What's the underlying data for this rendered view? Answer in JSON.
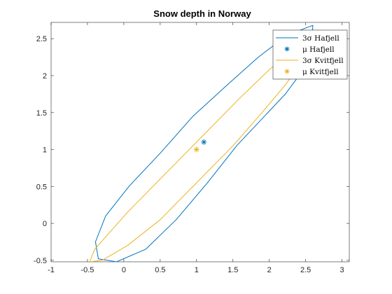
{
  "chart_data": {
    "type": "line",
    "title": "Snow depth in Norway",
    "xlabel": "",
    "ylabel": "",
    "xlim": [
      -1,
      3.1
    ],
    "ylim": [
      -0.52,
      2.72
    ],
    "xticks": [
      -1,
      -0.5,
      0,
      0.5,
      1,
      1.5,
      2,
      2.5,
      3
    ],
    "yticks": [
      -0.5,
      0,
      0.5,
      1,
      1.5,
      2,
      2.5
    ],
    "xtick_labels": [
      "-1",
      "-0.5",
      "0",
      "0.5",
      "1",
      "1.5",
      "2",
      "2.5",
      "3"
    ],
    "ytick_labels": [
      "-0.5",
      "0",
      "0.5",
      "1",
      "1.5",
      "2",
      "2.5"
    ],
    "grid": false,
    "legend_position": "top-right",
    "series": [
      {
        "name": "3σ Hafjell",
        "kind": "ellipse",
        "color": "#0072BD",
        "x": [
          -0.35,
          -0.39,
          -0.25,
          0.07,
          0.5,
          0.95,
          1.45,
          1.85,
          2.25,
          2.6,
          2.56,
          2.22,
          1.55,
          1.15,
          0.72,
          0.3,
          -0.1,
          -0.35
        ],
        "y": [
          -0.48,
          -0.25,
          0.1,
          0.5,
          0.95,
          1.45,
          1.9,
          2.25,
          2.55,
          2.68,
          2.2,
          1.75,
          1.05,
          0.55,
          0.05,
          -0.35,
          -0.52,
          -0.48
        ]
      },
      {
        "name": "μ Hafjell",
        "kind": "marker",
        "marker": "asterisk",
        "color": "#0072BD",
        "x": [
          1.1
        ],
        "y": [
          1.1
        ]
      },
      {
        "name": "3σ Kvitfjell",
        "kind": "ellipse",
        "color": "#EDB120",
        "x": [
          -0.47,
          -0.4,
          0.05,
          0.6,
          1.1,
          1.6,
          2.0,
          2.3,
          2.5,
          2.47,
          2.2,
          1.9,
          1.5,
          1.0,
          0.5,
          0.05,
          -0.3,
          -0.47
        ],
        "y": [
          -0.52,
          -0.35,
          0.15,
          0.7,
          1.2,
          1.7,
          2.08,
          2.32,
          2.42,
          2.2,
          1.85,
          1.5,
          1.05,
          0.55,
          0.05,
          -0.3,
          -0.5,
          -0.52
        ]
      },
      {
        "name": "μ Kvitfjell",
        "kind": "marker",
        "marker": "asterisk",
        "color": "#EDB120",
        "x": [
          1.0
        ],
        "y": [
          1.0
        ]
      }
    ],
    "legend": [
      {
        "label": "3σ Hafjell",
        "symbol": "line",
        "color": "#0072BD"
      },
      {
        "label": "μ Hafjell",
        "symbol": "asterisk",
        "color": "#0072BD"
      },
      {
        "label": "3σ Kvitfjell",
        "symbol": "line",
        "color": "#EDB120"
      },
      {
        "label": "μ Kvitfjell",
        "symbol": "asterisk",
        "color": "#EDB120"
      }
    ]
  }
}
